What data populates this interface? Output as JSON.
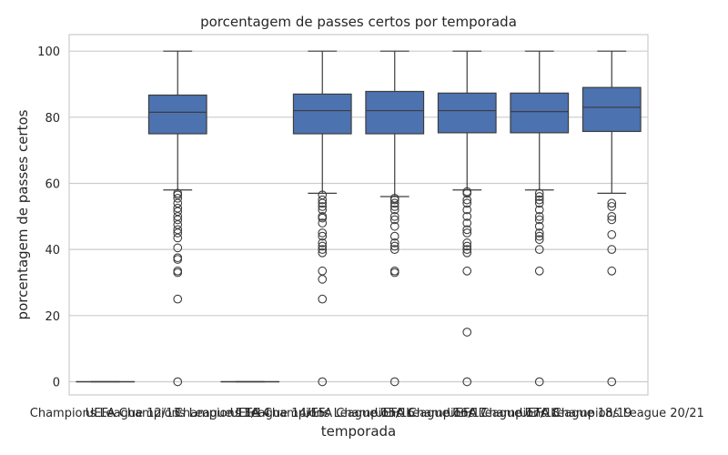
{
  "chart_data": {
    "type": "box",
    "title": "porcentagem de passes certos por temporada",
    "xlabel": "temporada",
    "ylabel": "porcentagem de passes certos",
    "ylim": [
      -4,
      105
    ],
    "yticks": [
      0,
      20,
      40,
      60,
      80,
      100
    ],
    "grid": true,
    "categories": [
      "Champions League 12/13",
      "UEFA Champions League 13/14",
      "Champions League 14/15",
      "UEFA Champions League 15/16",
      "UEFA Champions League 16/17",
      "UEFA Champions League 17/18",
      "UEFA Champions League 18/19",
      "UEFA Champions League 20/21"
    ],
    "boxes": [
      {
        "min": 0,
        "q1": 0,
        "median": 0,
        "q3": 0,
        "max": 0,
        "outliers": []
      },
      {
        "min": 58,
        "q1": 75,
        "median": 81.5,
        "q3": 86.7,
        "max": 100,
        "outliers": [
          57,
          56.5,
          55.5,
          54,
          52.5,
          51.5,
          50,
          49,
          47.5,
          46,
          45,
          43.5,
          40.5,
          37.5,
          37,
          33.5,
          33,
          25,
          0
        ]
      },
      {
        "min": 0,
        "q1": 0,
        "median": 0,
        "q3": 0,
        "max": 0,
        "outliers": []
      },
      {
        "min": 57,
        "q1": 75,
        "median": 82,
        "q3": 87,
        "max": 100,
        "outliers": [
          56.5,
          55,
          54,
          53,
          52,
          50,
          49.5,
          48,
          45,
          44,
          42,
          41,
          40,
          39,
          33.5,
          31,
          25,
          0
        ]
      },
      {
        "min": 56,
        "q1": 75,
        "median": 82,
        "q3": 87.8,
        "max": 100,
        "outliers": [
          55.5,
          55,
          54,
          53,
          52,
          50,
          49,
          47,
          44,
          42,
          41,
          40,
          33.5,
          33,
          0
        ]
      },
      {
        "min": 58,
        "q1": 75.3,
        "median": 82,
        "q3": 87.3,
        "max": 100,
        "outliers": [
          57.5,
          57,
          55,
          54,
          52,
          50,
          48,
          46,
          45,
          42,
          41,
          40,
          39,
          33.5,
          15,
          0
        ]
      },
      {
        "min": 58,
        "q1": 75.3,
        "median": 81.7,
        "q3": 87.3,
        "max": 100,
        "outliers": [
          57,
          56,
          55,
          54,
          52,
          50,
          49,
          47,
          45,
          44,
          43,
          40,
          33.5,
          0
        ]
      },
      {
        "min": 57,
        "q1": 75.7,
        "median": 83,
        "q3": 89,
        "max": 100,
        "outliers": [
          54,
          53,
          50,
          49,
          44.5,
          40,
          33.5,
          0
        ]
      }
    ],
    "colors": {
      "box": "#4c72b0",
      "edge": "#3d3d3d",
      "grid": "#cccccc",
      "frame": "#cccccc"
    }
  }
}
